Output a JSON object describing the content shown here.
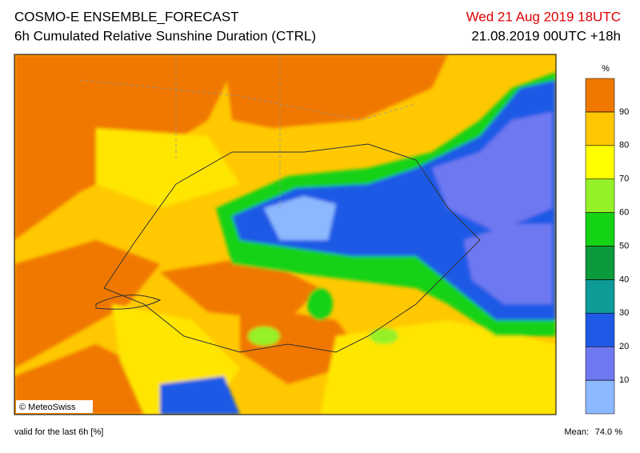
{
  "header": {
    "title": "COSMO-E ENSEMBLE_FORECAST",
    "subtitle": "6h Cumulated Relative Sunshine Duration (CTRL)",
    "valid_time": "Wed 21 Aug 2019 18UTC",
    "run": "21.08.2019 00UTC +18h"
  },
  "map": {
    "credit": "© MeteoSwiss"
  },
  "colorbar": {
    "unit": "%",
    "ticks": [
      10,
      20,
      30,
      40,
      50,
      60,
      70,
      80,
      90
    ],
    "colors": [
      "#8cb8ff",
      "#6e78f0",
      "#1e5ae6",
      "#0e9a96",
      "#0a9a3c",
      "#14d214",
      "#96f028",
      "#ffff00",
      "#ffc800",
      "#f07800"
    ]
  },
  "footer": {
    "note": "valid for the last 6h [%]",
    "mean_label": "Mean:",
    "mean_value": "74.0 %"
  }
}
